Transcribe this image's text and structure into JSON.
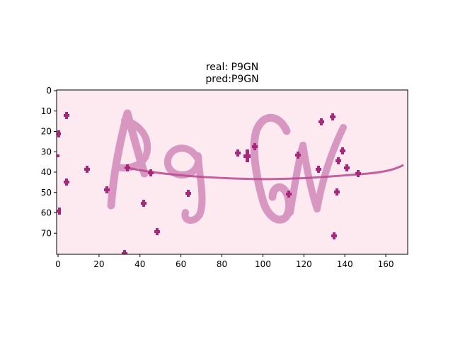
{
  "figure": {
    "title_line1": "real: P9GN",
    "title_line2": "pred:P9GN"
  },
  "image_panel": {
    "content": "captcha image showing handwritten-style characters P9GN with noise dots",
    "background_color": "#fdeaf0",
    "stroke_color": "#d593bf",
    "noise_color": "#a8277a"
  },
  "axes": {
    "x_ticks": [
      "0",
      "20",
      "40",
      "60",
      "80",
      "100",
      "120",
      "140",
      "160"
    ],
    "y_ticks": [
      "0",
      "10",
      "20",
      "30",
      "40",
      "50",
      "60",
      "70"
    ],
    "x_max": 170,
    "y_max": 80
  }
}
